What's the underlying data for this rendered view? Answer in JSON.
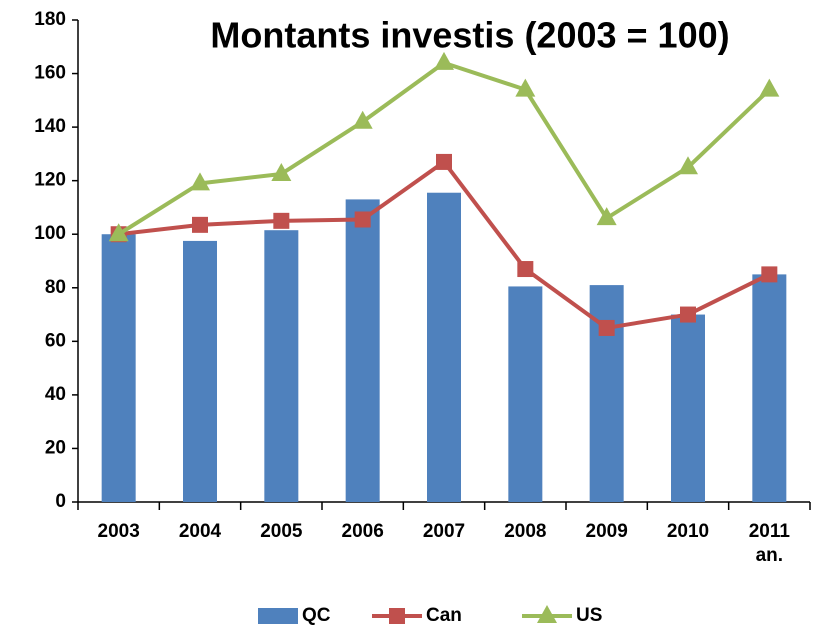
{
  "chart_data": {
    "type": "bar",
    "title": "Montants investis (2003 = 100)",
    "categories": [
      "2003",
      "2004",
      "2005",
      "2006",
      "2007",
      "2008",
      "2009",
      "2010",
      "2011 an."
    ],
    "series": [
      {
        "name": "QC",
        "type": "bar",
        "color": "#4f81bd",
        "values": [
          100,
          97.5,
          101.5,
          113,
          115.5,
          80.5,
          81,
          70,
          85
        ]
      },
      {
        "name": "Can",
        "type": "line",
        "marker": "square",
        "color": "#c0504d",
        "values": [
          100,
          103.5,
          105,
          105.5,
          127,
          87,
          65,
          70,
          85
        ]
      },
      {
        "name": "US",
        "type": "line",
        "marker": "triangle",
        "color": "#9bbb59",
        "values": [
          100,
          119,
          122.5,
          142,
          164,
          154,
          106,
          125,
          154
        ]
      }
    ],
    "ylim": [
      0,
      180
    ],
    "yticks": [
      0,
      20,
      40,
      60,
      80,
      100,
      120,
      140,
      160,
      180
    ],
    "grid": false,
    "legend": "bottom"
  }
}
